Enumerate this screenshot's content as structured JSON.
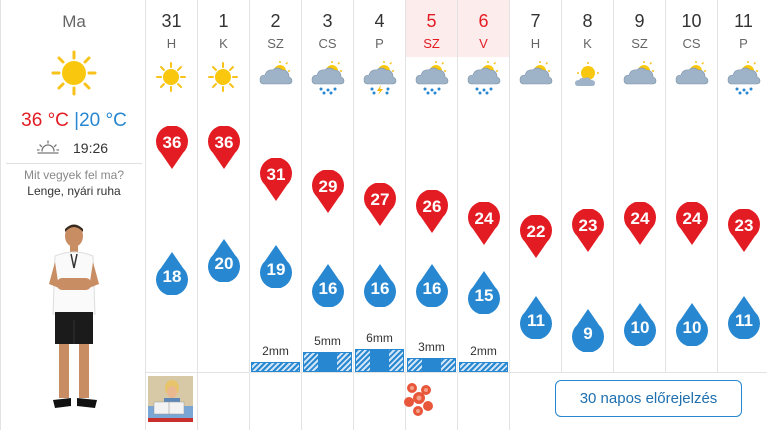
{
  "today": {
    "label": "Ma",
    "temp_max": "36 °C",
    "separator": "|",
    "temp_min": "20 °C",
    "sunset_time": "19:26",
    "icon": "sun-icon",
    "wear_question": "Mit vegyek fel ma?",
    "wear_answer": "Lenge, nyári ruha"
  },
  "colors": {
    "max": "#e31c23",
    "min": "#2787d0",
    "weekend_bg": "#fdecec"
  },
  "days": [
    {
      "num": "31",
      "name": "H",
      "icon": "sun-icon",
      "max": "36",
      "min": "18"
    },
    {
      "num": "1",
      "name": "K",
      "icon": "sun-icon",
      "max": "36",
      "min": "20"
    },
    {
      "num": "2",
      "name": "SZ",
      "icon": "partly-cloudy-icon",
      "max": "31",
      "min": "19"
    },
    {
      "num": "3",
      "name": "CS",
      "icon": "cloud-rain-icon",
      "max": "29",
      "min": "16"
    },
    {
      "num": "4",
      "name": "P",
      "icon": "thunderstorm-icon",
      "max": "27",
      "min": "16"
    },
    {
      "num": "5",
      "name": "SZ",
      "icon": "sun-cloud-rain-icon",
      "max": "26",
      "min": "16",
      "weekend": true
    },
    {
      "num": "6",
      "name": "V",
      "icon": "sun-cloud-rain-icon",
      "max": "24",
      "min": "15",
      "weekend": true
    },
    {
      "num": "7",
      "name": "H",
      "icon": "partly-cloudy-icon",
      "max": "22",
      "min": "11"
    },
    {
      "num": "8",
      "name": "K",
      "icon": "sun-small-cloud-icon",
      "max": "23",
      "min": "9"
    },
    {
      "num": "9",
      "name": "SZ",
      "icon": "partly-cloudy-icon",
      "max": "24",
      "min": "10"
    },
    {
      "num": "10",
      "name": "CS",
      "icon": "partly-cloudy-icon",
      "max": "24",
      "min": "10"
    },
    {
      "num": "11",
      "name": "P",
      "icon": "sun-cloud-rain-icon",
      "max": "23",
      "min": "11"
    }
  ],
  "rain": [
    {
      "day_index": 2,
      "amount": "2mm",
      "mm": 2
    },
    {
      "day_index": 3,
      "amount": "5mm",
      "mm": 5
    },
    {
      "day_index": 4,
      "amount": "6mm",
      "mm": 6
    },
    {
      "day_index": 5,
      "amount": "3mm",
      "mm": 3
    },
    {
      "day_index": 6,
      "amount": "2mm",
      "mm": 2
    }
  ],
  "button_30day": "30 napos előrejelzés"
}
